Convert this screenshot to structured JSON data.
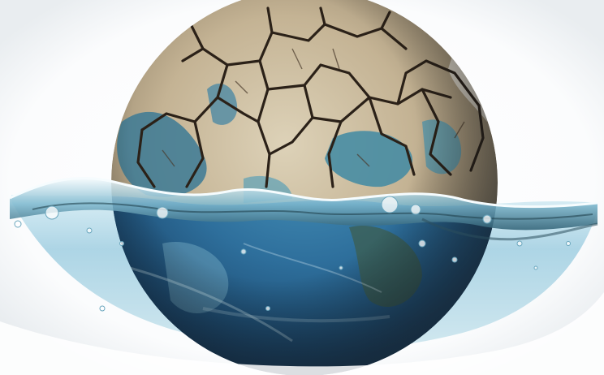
{
  "image": {
    "subject": "earth-globe-cracked-and-submerged",
    "icon_names": [
      "cracked-earth-icon",
      "water-wave-icon",
      "globe-icon"
    ],
    "colors": {
      "background": "#ffffff",
      "dry_land": "#c9b99a",
      "crack": "#2b2118",
      "ocean": "#2e6f9c",
      "water_light": "#bfe0ec",
      "water_deep": "#4f9ec3",
      "wave_highlight": "#eef7fb"
    }
  }
}
